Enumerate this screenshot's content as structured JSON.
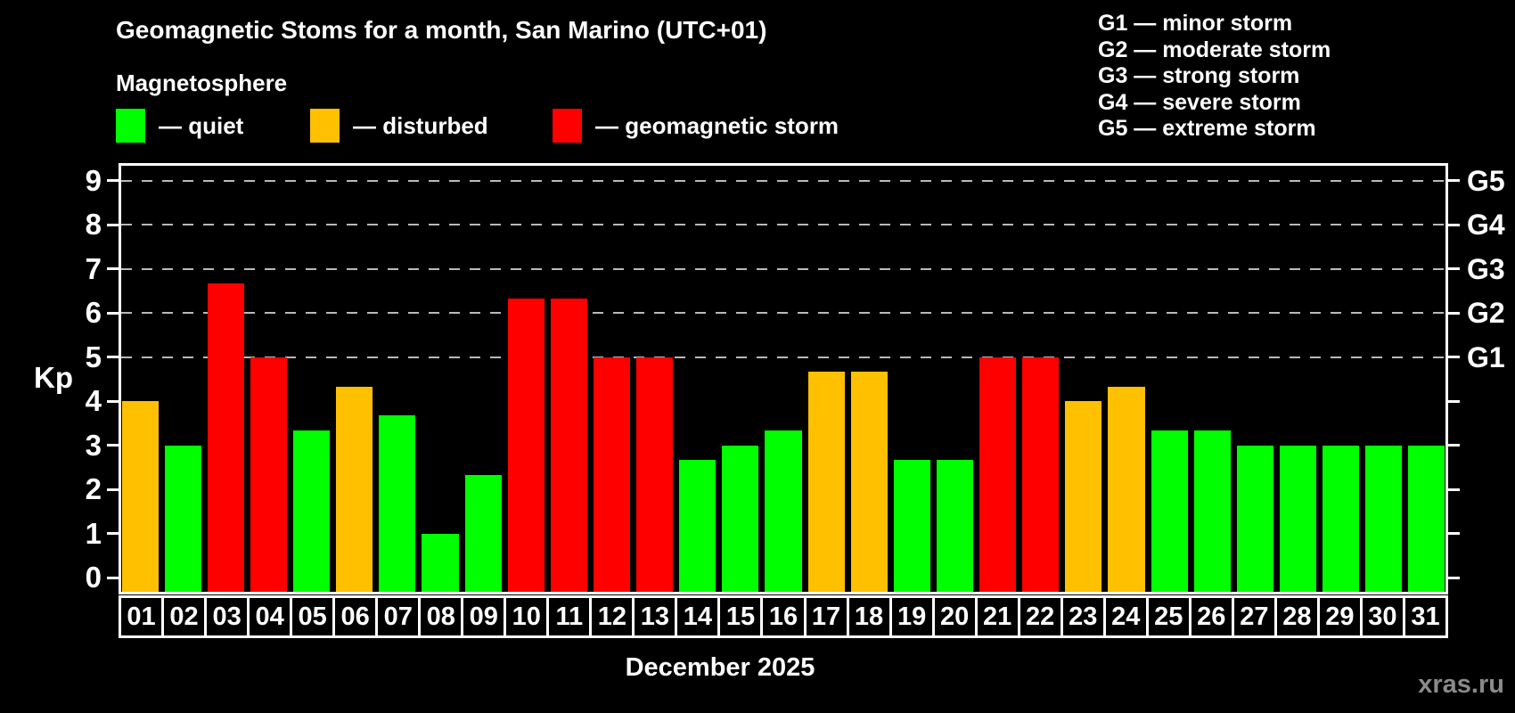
{
  "header": {
    "title": "Geomagnetic Stoms for a month, San Marino (UTC+01)",
    "subtitle": "Magnetosphere"
  },
  "legend": {
    "items": [
      {
        "key": "quiet",
        "label": "— quiet",
        "color": "#00ff00"
      },
      {
        "key": "disturbed",
        "label": "— disturbed",
        "color": "#ffc000"
      },
      {
        "key": "storm",
        "label": "— geomagnetic storm",
        "color": "#ff0000"
      }
    ]
  },
  "gscale_legend": {
    "lines": [
      "G1 — minor storm",
      "G2 — moderate storm",
      "G3 — strong storm",
      "G4 — severe storm",
      "G5 — extreme storm"
    ]
  },
  "footer": {
    "caption": "December 2025",
    "watermark": "xras.ru"
  },
  "chart_data": {
    "type": "bar",
    "title": "Geomagnetic Stoms for a month, San Marino (UTC+01)",
    "xlabel": "December 2025",
    "ylabel": "Kp",
    "ylim": [
      0,
      9
    ],
    "yticks": [
      0,
      1,
      2,
      3,
      4,
      5,
      6,
      7,
      8,
      9
    ],
    "gridlines": [
      5,
      6,
      7,
      8,
      9
    ],
    "grid": true,
    "right_axis": [
      {
        "kp": 5,
        "label": "G1"
      },
      {
        "kp": 6,
        "label": "G2"
      },
      {
        "kp": 7,
        "label": "G3"
      },
      {
        "kp": 8,
        "label": "G4"
      },
      {
        "kp": 9,
        "label": "G5"
      }
    ],
    "categories": [
      "01",
      "02",
      "03",
      "04",
      "05",
      "06",
      "07",
      "08",
      "09",
      "10",
      "11",
      "12",
      "13",
      "14",
      "15",
      "16",
      "17",
      "18",
      "19",
      "20",
      "21",
      "22",
      "23",
      "24",
      "25",
      "26",
      "27",
      "28",
      "29",
      "30",
      "31"
    ],
    "values": [
      4,
      3,
      6.67,
      5,
      3.33,
      4.33,
      3.67,
      1,
      2.33,
      6.33,
      6.33,
      5,
      5,
      2.67,
      3,
      3.33,
      4.67,
      4.67,
      2.67,
      2.67,
      5,
      5,
      4,
      4.33,
      3.33,
      3.33,
      3,
      3,
      3,
      3,
      3
    ],
    "status": [
      "disturbed",
      "quiet",
      "storm",
      "storm",
      "quiet",
      "disturbed",
      "quiet",
      "quiet",
      "quiet",
      "storm",
      "storm",
      "storm",
      "storm",
      "quiet",
      "quiet",
      "quiet",
      "disturbed",
      "disturbed",
      "quiet",
      "quiet",
      "storm",
      "storm",
      "disturbed",
      "disturbed",
      "quiet",
      "quiet",
      "quiet",
      "quiet",
      "quiet",
      "quiet",
      "quiet"
    ],
    "status_colors": {
      "quiet": "#00ff00",
      "disturbed": "#ffc000",
      "storm": "#ff0000"
    }
  }
}
